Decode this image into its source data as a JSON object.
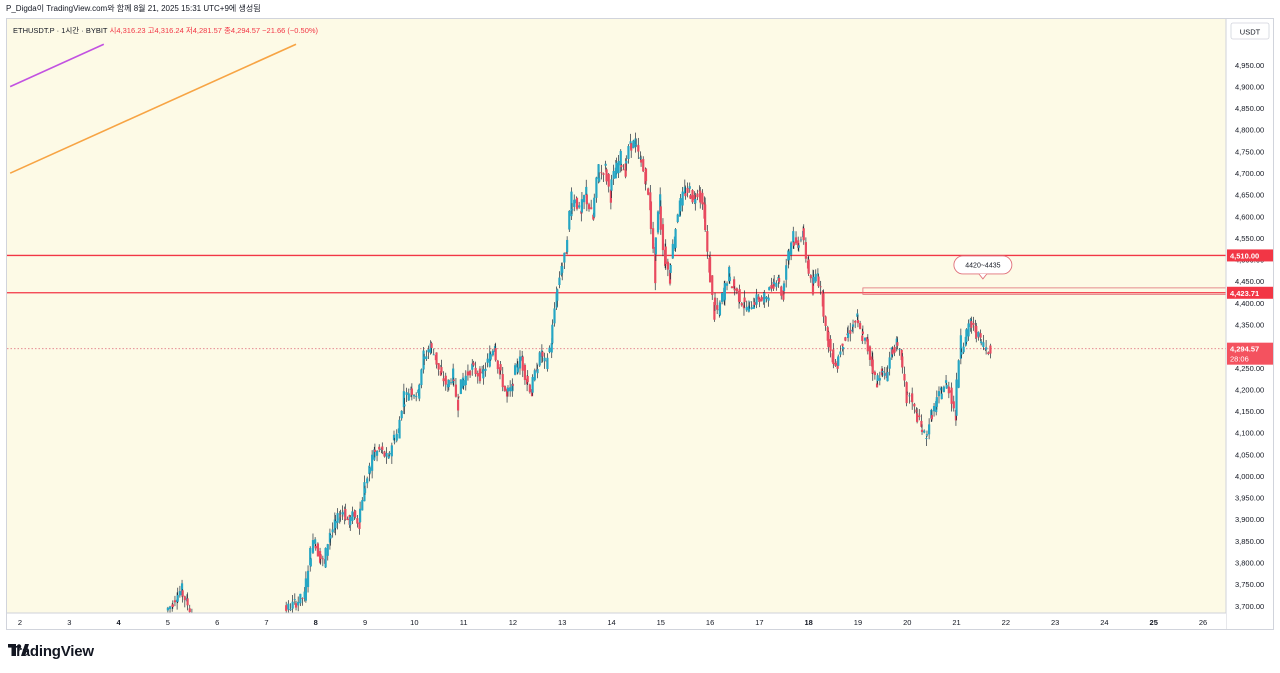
{
  "header": {
    "caption": "P_Digda이 TradingView.com와 함께 8월 21, 2025 15:31 UTC+9에 생성됨"
  },
  "legend": {
    "symbol": "ETHUSDT.P · 1시간 · BYBIT",
    "ohlc": "시4,316.23  고4,316.24  저4,281.57  종4,294.57  −21.66 (−0.50%)"
  },
  "footer": {
    "brand": "TradingView"
  },
  "colors": {
    "background": "#fdfae6",
    "up": "#26a6c4",
    "down": "#e84a5f",
    "level": "#f23645",
    "trend_orange": "#f7a444",
    "trend_purple": "#c252e1"
  },
  "chart_data": {
    "type": "candlestick",
    "title": "",
    "xlabel": "",
    "ylabel": "",
    "y_axis_unit": "USDT",
    "ylim": [
      3690,
      4980
    ],
    "x_ticks": [
      "2",
      "3",
      "4",
      "5",
      "6",
      "7",
      "8",
      "9",
      "10",
      "11",
      "12",
      "13",
      "14",
      "15",
      "16",
      "17",
      "18",
      "19",
      "20",
      "21",
      "22",
      "23",
      "24",
      "25",
      "26"
    ],
    "y_ticks": [
      "4,950.00",
      "4,900.00",
      "4,850.00",
      "4,800.00",
      "4,750.00",
      "4,700.00",
      "4,650.00",
      "4,600.00",
      "4,550.00",
      "4,500.00",
      "4,450.00",
      "4,400.00",
      "4,350.00",
      "4,300.00",
      "4,250.00",
      "4,200.00",
      "4,150.00",
      "4,100.00",
      "4,050.00",
      "4,000.00",
      "3,950.00",
      "3,900.00",
      "3,850.00",
      "3,800.00",
      "3,750.00",
      "3,700.00"
    ],
    "horizontal_levels": [
      {
        "value": 4510.0,
        "label": "4,510.00"
      },
      {
        "value": 4423.71,
        "label": "4,423.71"
      }
    ],
    "last_price": {
      "value": 4294.57,
      "label": "4,294.57",
      "countdown": "28:06"
    },
    "annotation": {
      "text": "4420~4435",
      "from": 4420,
      "to": 4435,
      "start_day": 19.1
    },
    "trend_lines": [
      {
        "color": "orange",
        "points": [
          [
            1.8,
            4700
          ],
          [
            7.6,
            4998
          ]
        ]
      },
      {
        "color": "purple",
        "points": [
          [
            1.8,
            4900
          ],
          [
            3.7,
            4998
          ]
        ]
      }
    ],
    "price_path": [
      [
        5.0,
        3690
      ],
      [
        5.1,
        3700
      ],
      [
        5.2,
        3720
      ],
      [
        5.3,
        3735
      ],
      [
        5.4,
        3715
      ],
      [
        5.5,
        3690
      ],
      [
        7.4,
        3690
      ],
      [
        7.6,
        3705
      ],
      [
        7.8,
        3722
      ],
      [
        7.9,
        3800
      ],
      [
        8.0,
        3850
      ],
      [
        8.1,
        3820
      ],
      [
        8.2,
        3800
      ],
      [
        8.3,
        3855
      ],
      [
        8.4,
        3880
      ],
      [
        8.5,
        3905
      ],
      [
        8.6,
        3920
      ],
      [
        8.7,
        3895
      ],
      [
        8.8,
        3910
      ],
      [
        8.9,
        3895
      ],
      [
        9.0,
        3960
      ],
      [
        9.1,
        4000
      ],
      [
        9.2,
        4050
      ],
      [
        9.35,
        4060
      ],
      [
        9.5,
        4040
      ],
      [
        9.6,
        4080
      ],
      [
        9.7,
        4100
      ],
      [
        9.8,
        4170
      ],
      [
        9.95,
        4200
      ],
      [
        10.1,
        4190
      ],
      [
        10.2,
        4260
      ],
      [
        10.35,
        4300
      ],
      [
        10.45,
        4280
      ],
      [
        10.55,
        4240
      ],
      [
        10.7,
        4210
      ],
      [
        10.8,
        4230
      ],
      [
        10.9,
        4180
      ],
      [
        11.0,
        4215
      ],
      [
        11.2,
        4250
      ],
      [
        11.4,
        4230
      ],
      [
        11.55,
        4270
      ],
      [
        11.65,
        4300
      ],
      [
        11.75,
        4250
      ],
      [
        11.9,
        4190
      ],
      [
        12.0,
        4200
      ],
      [
        12.1,
        4250
      ],
      [
        12.2,
        4270
      ],
      [
        12.3,
        4230
      ],
      [
        12.4,
        4200
      ],
      [
        12.5,
        4240
      ],
      [
        12.6,
        4280
      ],
      [
        12.7,
        4260
      ],
      [
        12.8,
        4300
      ],
      [
        12.9,
        4400
      ],
      [
        13.0,
        4470
      ],
      [
        13.1,
        4510
      ],
      [
        13.2,
        4620
      ],
      [
        13.3,
        4640
      ],
      [
        13.4,
        4610
      ],
      [
        13.5,
        4650
      ],
      [
        13.65,
        4600
      ],
      [
        13.75,
        4690
      ],
      [
        13.9,
        4710
      ],
      [
        14.0,
        4660
      ],
      [
        14.1,
        4700
      ],
      [
        14.2,
        4730
      ],
      [
        14.3,
        4710
      ],
      [
        14.4,
        4760
      ],
      [
        14.5,
        4770
      ],
      [
        14.6,
        4740
      ],
      [
        14.7,
        4700
      ],
      [
        14.8,
        4640
      ],
      [
        14.9,
        4500
      ],
      [
        15.0,
        4620
      ],
      [
        15.1,
        4520
      ],
      [
        15.2,
        4470
      ],
      [
        15.3,
        4540
      ],
      [
        15.4,
        4620
      ],
      [
        15.5,
        4650
      ],
      [
        15.6,
        4660
      ],
      [
        15.7,
        4640
      ],
      [
        15.8,
        4660
      ],
      [
        15.9,
        4620
      ],
      [
        16.0,
        4500
      ],
      [
        16.1,
        4400
      ],
      [
        16.2,
        4380
      ],
      [
        16.3,
        4420
      ],
      [
        16.4,
        4460
      ],
      [
        16.5,
        4440
      ],
      [
        16.6,
        4420
      ],
      [
        16.7,
        4400
      ],
      [
        16.8,
        4390
      ],
      [
        16.9,
        4400
      ],
      [
        17.0,
        4410
      ],
      [
        17.1,
        4405
      ],
      [
        17.2,
        4420
      ],
      [
        17.3,
        4440
      ],
      [
        17.4,
        4460
      ],
      [
        17.5,
        4420
      ],
      [
        17.6,
        4500
      ],
      [
        17.7,
        4550
      ],
      [
        17.8,
        4530
      ],
      [
        17.9,
        4560
      ],
      [
        18.0,
        4500
      ],
      [
        18.1,
        4440
      ],
      [
        18.2,
        4470
      ],
      [
        18.3,
        4420
      ],
      [
        18.4,
        4330
      ],
      [
        18.5,
        4280
      ],
      [
        18.6,
        4260
      ],
      [
        18.7,
        4300
      ],
      [
        18.8,
        4320
      ],
      [
        18.9,
        4340
      ],
      [
        19.0,
        4360
      ],
      [
        19.1,
        4330
      ],
      [
        19.2,
        4310
      ],
      [
        19.3,
        4270
      ],
      [
        19.4,
        4220
      ],
      [
        19.5,
        4240
      ],
      [
        19.6,
        4230
      ],
      [
        19.7,
        4280
      ],
      [
        19.8,
        4300
      ],
      [
        19.9,
        4280
      ],
      [
        20.0,
        4200
      ],
      [
        20.1,
        4180
      ],
      [
        20.2,
        4150
      ],
      [
        20.3,
        4120
      ],
      [
        20.4,
        4090
      ],
      [
        20.5,
        4130
      ],
      [
        20.6,
        4160
      ],
      [
        20.7,
        4190
      ],
      [
        20.8,
        4210
      ],
      [
        20.9,
        4200
      ],
      [
        21.0,
        4150
      ],
      [
        21.1,
        4290
      ],
      [
        21.2,
        4310
      ],
      [
        21.3,
        4350
      ],
      [
        21.4,
        4340
      ],
      [
        21.5,
        4320
      ],
      [
        21.6,
        4300
      ],
      [
        21.7,
        4294.57
      ]
    ]
  }
}
